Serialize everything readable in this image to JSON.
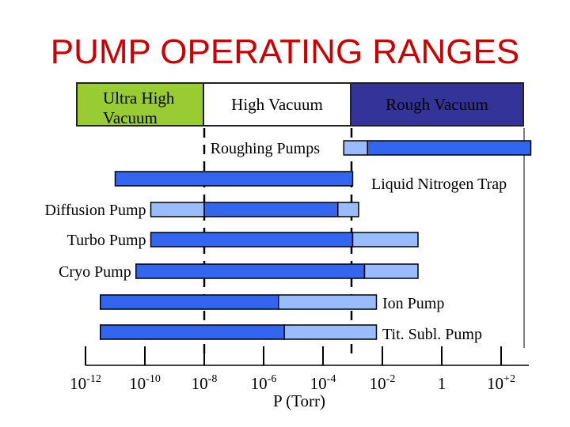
{
  "title": "PUMP OPERATING RANGES",
  "regimes": {
    "uhv": "Ultra High Vacuum",
    "hv": "High Vacuum",
    "rv": "Rough Vacuum"
  },
  "colors": {
    "title": "#cc0000",
    "uhv": "#99cc33",
    "hv": "#ffffff",
    "rv": "#333399",
    "bar_primary": "#3366ee",
    "bar_extended": "#99bbff"
  },
  "chart_data": {
    "type": "bar",
    "orientation": "horizontal",
    "x_scale": "log10",
    "xlabel": "P (Torr)",
    "x_ticks": [
      {
        "exp": -12,
        "base": "10",
        "sup": "-12"
      },
      {
        "exp": -10,
        "base": "10",
        "sup": "-10"
      },
      {
        "exp": -8,
        "base": "10",
        "sup": "-8"
      },
      {
        "exp": -6,
        "base": "10",
        "sup": "-6"
      },
      {
        "exp": -4,
        "base": "10",
        "sup": "-4"
      },
      {
        "exp": -2,
        "base": "10",
        "sup": "-2"
      },
      {
        "exp": 0,
        "base": "1",
        "sup": ""
      },
      {
        "exp": 2,
        "base": "10",
        "sup": "+2"
      }
    ],
    "xlim": [
      -12,
      3
    ],
    "regime_boundaries_exp": [
      -8,
      -3
    ],
    "series": [
      {
        "name": "Roughing Pumps",
        "label_side": "left",
        "segments": [
          {
            "from": -3.3,
            "to": -2.5,
            "kind": "extended"
          },
          {
            "from": -2.5,
            "to": 3.0,
            "kind": "primary"
          }
        ]
      },
      {
        "name": "Liquid Nitrogen Trap",
        "label_side": "right",
        "segments": [
          {
            "from": -11.0,
            "to": -3.0,
            "kind": "primary"
          }
        ]
      },
      {
        "name": "Diffusion Pump",
        "label_side": "left",
        "segments": [
          {
            "from": -9.8,
            "to": -8.0,
            "kind": "extended"
          },
          {
            "from": -8.0,
            "to": -3.5,
            "kind": "primary"
          },
          {
            "from": -3.5,
            "to": -2.8,
            "kind": "extended"
          }
        ]
      },
      {
        "name": "Turbo Pump",
        "label_side": "left",
        "segments": [
          {
            "from": -9.8,
            "to": -3.0,
            "kind": "primary"
          },
          {
            "from": -3.0,
            "to": -0.8,
            "kind": "extended"
          }
        ]
      },
      {
        "name": "Cryo Pump",
        "label_side": "left",
        "segments": [
          {
            "from": -10.3,
            "to": -2.6,
            "kind": "primary"
          },
          {
            "from": -2.6,
            "to": -0.8,
            "kind": "extended"
          }
        ]
      },
      {
        "name": "Ion Pump",
        "label_side": "right",
        "segments": [
          {
            "from": -11.5,
            "to": -5.5,
            "kind": "primary"
          },
          {
            "from": -5.5,
            "to": -2.2,
            "kind": "extended"
          }
        ]
      },
      {
        "name": "Tit. Subl. Pump",
        "label_side": "right",
        "segments": [
          {
            "from": -11.5,
            "to": -5.3,
            "kind": "primary"
          },
          {
            "from": -5.3,
            "to": -2.2,
            "kind": "extended"
          }
        ]
      }
    ]
  }
}
